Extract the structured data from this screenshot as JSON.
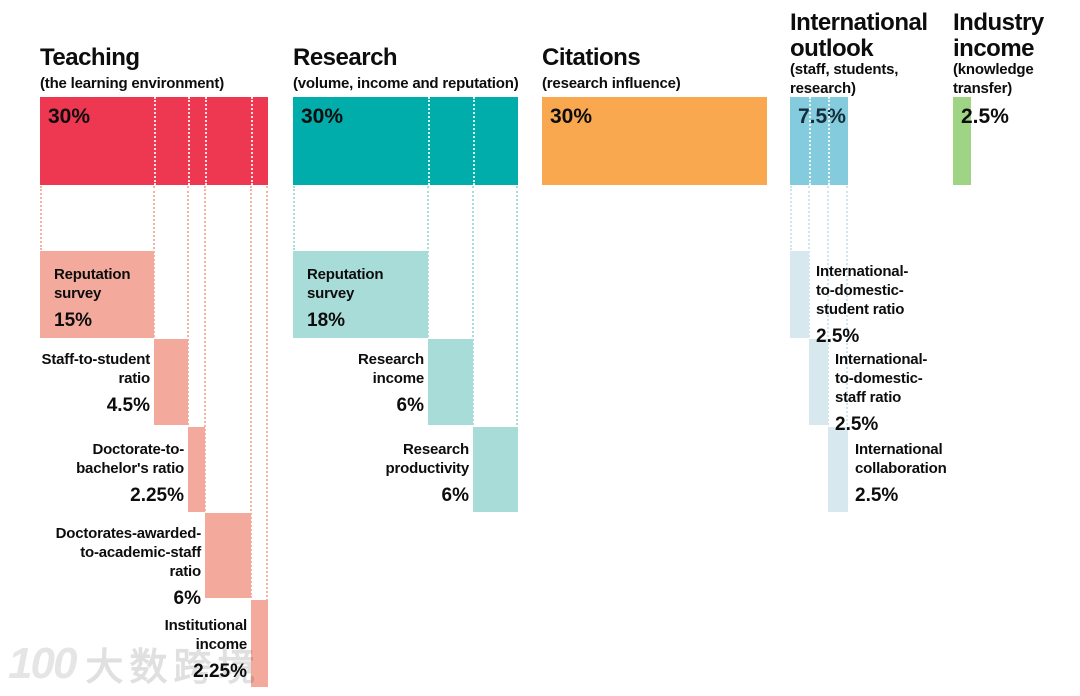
{
  "chart_data": {
    "type": "bar",
    "description": "Ranking methodology weighting breakdown: five weighted pillars with cascading sub-indicator blocks",
    "unit": "%",
    "total": 100,
    "layout": {
      "orientation": "horizontal",
      "bar_width_proportional_to_weight": true,
      "sub_blocks_cascade": "waterfall below each pillar bar"
    },
    "sections": [
      {
        "name": "Teaching",
        "subtitle": "(the learning environment)",
        "weight": 30,
        "weight_label": "30%",
        "color": "#ee3750",
        "sub_color": "#f3aa9c",
        "subs": [
          {
            "label": "Reputation\nsurvey",
            "value": 15,
            "value_label": "15%"
          },
          {
            "label": "Staff-to-student\nratio",
            "value": 4.5,
            "value_label": "4.5%"
          },
          {
            "label": "Doctorate-to-\nbachelor's ratio",
            "value": 2.25,
            "value_label": "2.25%"
          },
          {
            "label": "Doctorates-awarded-\nto-academic-staff\nratio",
            "value": 6,
            "value_label": "6%"
          },
          {
            "label": "Institutional\nincome",
            "value": 2.25,
            "value_label": "2.25%"
          }
        ]
      },
      {
        "name": "Research",
        "subtitle": "(volume, income and reputation)",
        "weight": 30,
        "weight_label": "30%",
        "color": "#00adab",
        "sub_color": "#a8dcd8",
        "subs": [
          {
            "label": "Reputation\nsurvey",
            "value": 18,
            "value_label": "18%"
          },
          {
            "label": "Research\nincome",
            "value": 6,
            "value_label": "6%"
          },
          {
            "label": "Research\nproductivity",
            "value": 6,
            "value_label": "6%"
          }
        ]
      },
      {
        "name": "Citations",
        "subtitle": "(research influence)",
        "weight": 30,
        "weight_label": "30%",
        "color": "#faa84f",
        "subs": []
      },
      {
        "name": "International\noutlook",
        "subtitle": "(staff, students,\nresearch)",
        "weight": 7.5,
        "weight_label": "7.5%",
        "color": "#84cbde",
        "sub_color": "#d7e9ef",
        "subs": [
          {
            "label": "International-\nto-domestic-\nstudent ratio",
            "value": 2.5,
            "value_label": "2.5%"
          },
          {
            "label": "International-\nto-domestic-\nstaff ratio",
            "value": 2.5,
            "value_label": "2.5%"
          },
          {
            "label": "International\ncollaboration",
            "value": 2.5,
            "value_label": "2.5%"
          }
        ]
      },
      {
        "name": "Industry\nincome",
        "subtitle": "(knowledge\ntransfer)",
        "weight": 2.5,
        "weight_label": "2.5%",
        "color": "#9fd484",
        "subs": []
      }
    ]
  },
  "watermark": {
    "logo": "100",
    "text": "大数跨境"
  }
}
